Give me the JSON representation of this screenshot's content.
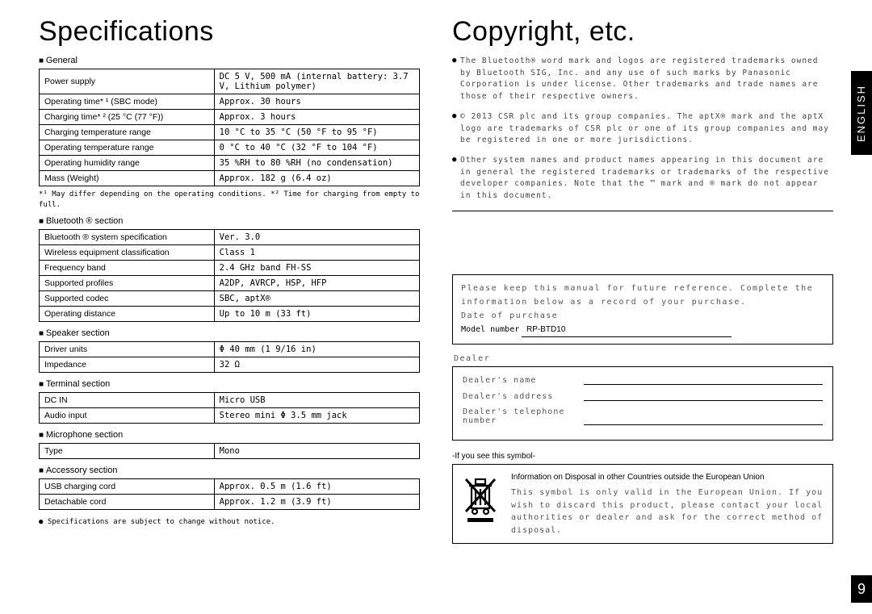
{
  "page": {
    "sideTab": "ENGLISH",
    "pageNumber": "9"
  },
  "left": {
    "title": "Specifications",
    "sections": [
      {
        "head": "General",
        "rows": [
          {
            "label": "Power supply",
            "value": "DC 5 V, 500 mA\n(internal battery: 3.7 V, Lithium polymer)"
          },
          {
            "label": "Operating time* ¹ (SBC mode)",
            "value": "Approx. 30 hours"
          },
          {
            "label": "Charging time* ² (25 °C (77 °F))",
            "value": "Approx. 3 hours"
          },
          {
            "label": "Charging temperature range",
            "value": "10 °C to 35 °C (50 °F to 95 °F)"
          },
          {
            "label": "Operating temperature range",
            "value": "0 °C to 40 °C (32 °F to 104 °F)"
          },
          {
            "label": "Operating humidity range",
            "value": "35 %RH to 80 %RH (no condensation)"
          },
          {
            "label": "Mass (Weight)",
            "value": "Approx. 182 g (6.4 oz)"
          }
        ],
        "footnote": "*¹ May differ depending on the operating conditions.\n*² Time for charging from empty to full."
      },
      {
        "head": "Bluetooth ® section",
        "rows": [
          {
            "label": "Bluetooth ® system specification",
            "value": "Ver. 3.0"
          },
          {
            "label": "Wireless equipment classification",
            "value": "Class 1"
          },
          {
            "label": "Frequency band",
            "value": "2.4 GHz band FH-SS"
          },
          {
            "label": "Supported profiles",
            "value": "A2DP, AVRCP, HSP, HFP"
          },
          {
            "label": "Supported codec",
            "value": "SBC, aptX®"
          },
          {
            "label": "Operating distance",
            "value": "Up to 10 m (33 ft)"
          }
        ]
      },
      {
        "head": "Speaker section",
        "rows": [
          {
            "label": "Driver units",
            "value": "Φ 40 mm (1 9/16 in)"
          },
          {
            "label": "Impedance",
            "value": "32 Ω"
          }
        ]
      },
      {
        "head": "Terminal section",
        "rows": [
          {
            "label": "DC IN",
            "value": "Micro USB"
          },
          {
            "label": "Audio input",
            "value": "Stereo mini Φ 3.5 mm jack"
          }
        ]
      },
      {
        "head": "Microphone section",
        "rows": [
          {
            "label": "Type",
            "value": "Mono"
          }
        ]
      },
      {
        "head": "Accessory section",
        "rows": [
          {
            "label": "USB charging cord",
            "value": "Approx. 0.5 m (1.6 ft)"
          },
          {
            "label": "Detachable cord",
            "value": "Approx. 1.2 m (3.9 ft)"
          }
        ]
      }
    ],
    "bottomBullet": "Specifications are subject to change without notice."
  },
  "right": {
    "title": "Copyright, etc.",
    "bullets": [
      "The Bluetooth® word mark and logos are registered trademarks owned by Bluetooth SIG, Inc. and any use of such marks by Panasonic Corporation is under license. Other trademarks and trade names are those of their respective owners.",
      "© 2013 CSR plc and its group companies. The aptX® mark and the aptX logo are trademarks of CSR plc or one of its group companies and may be registered in one or more jurisdictions.",
      "Other system names and product names appearing in this document are in general the registered trademarks or trademarks of the respective developer companies.\nNote that the ™ mark and ® mark do not appear in this document."
    ],
    "formBox": {
      "line1": "Please keep this manual for future reference. Complete the information below as a record of your purchase.",
      "line2": "Date of purchase",
      "modelPrefix": "Model number",
      "model": "RP-BTD10"
    },
    "dealerLabel": "Dealer",
    "dealerRows": [
      "Dealer's name",
      "Dealer's address",
      "Dealer's telephone number"
    ],
    "symbolLabel": "-If you see this symbol-",
    "disposeHead": "Information on Disposal in other Countries outside the European Union",
    "disposeBody": "This symbol is only valid in the European Union. If you wish to discard this product, please contact your local authorities or dealer and ask for the correct method of disposal."
  }
}
